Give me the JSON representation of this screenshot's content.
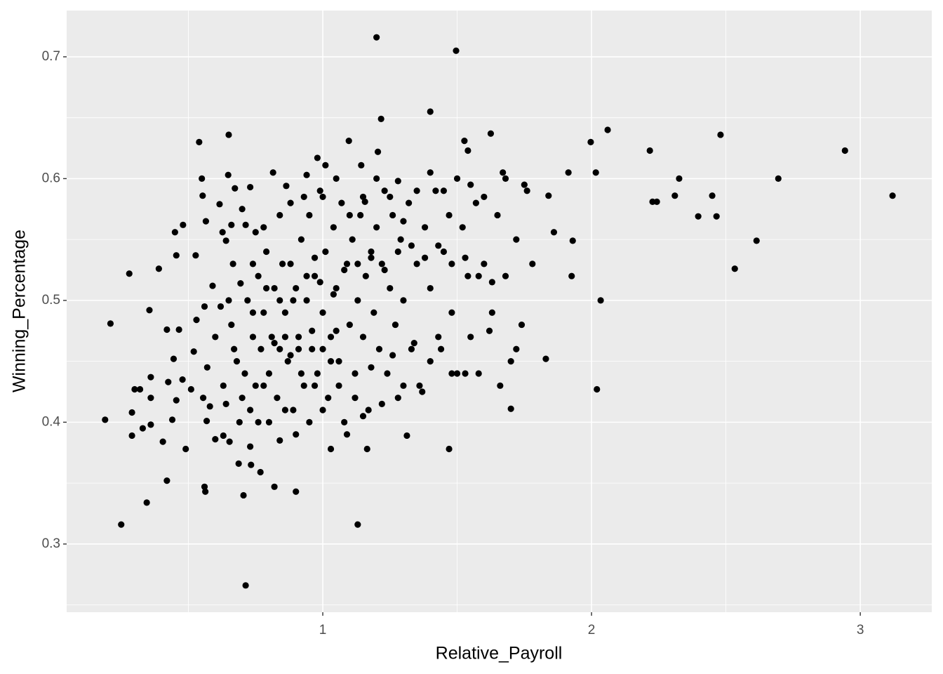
{
  "chart_data": {
    "type": "scatter",
    "x_label": "Relative_Payroll",
    "y_label": "Winning_Percentage",
    "xlim": [
      0.047,
      3.266
    ],
    "ylim": [
      0.244,
      0.738
    ],
    "xticks": [
      1,
      2,
      3
    ],
    "yticks": [
      0.3,
      0.4,
      0.5,
      0.6,
      0.7
    ],
    "grid": true,
    "color": "#000000",
    "x": [
      0.19,
      0.21,
      0.25,
      0.28,
      0.29,
      0.29,
      0.3,
      0.32,
      0.33,
      0.345,
      0.355,
      0.36,
      0.36,
      0.36,
      0.39,
      0.405,
      0.42,
      0.42,
      0.425,
      0.44,
      0.445,
      0.45,
      0.455,
      0.455,
      0.465,
      0.48,
      0.478,
      0.49,
      0.51,
      0.52,
      0.527,
      0.53,
      0.54,
      0.55,
      0.553,
      0.56,
      0.56,
      0.563,
      0.565,
      0.555,
      0.568,
      0.58,
      0.59,
      0.6,
      0.616,
      0.627,
      0.63,
      0.64,
      0.648,
      0.65,
      0.653,
      0.66,
      0.666,
      0.673,
      0.687,
      0.694,
      0.705,
      0.713,
      0.713,
      0.73,
      0.733,
      0.75,
      0.768,
      0.815,
      0.82,
      0.864,
      0.9,
      0.94,
      0.98,
      1.01,
      1.03,
      1.097,
      1.13,
      1.143,
      1.157,
      1.165,
      1.2,
      1.205,
      1.217,
      1.28,
      1.313,
      1.4,
      1.47,
      1.496,
      1.527,
      1.54,
      1.625,
      1.67,
      1.7,
      1.75,
      1.83,
      1.84,
      1.86,
      1.914,
      1.926,
      1.93,
      1.997,
      2.016,
      2.02,
      2.034,
      2.06,
      2.217,
      2.227,
      2.243,
      2.31,
      2.326,
      2.397,
      2.449,
      2.465,
      2.48,
      2.533,
      2.614,
      2.695,
      2.943,
      3.12,
      0.62,
      0.65,
      0.66,
      0.67,
      0.68,
      0.7,
      0.71,
      0.72,
      0.73,
      0.74,
      0.75,
      0.76,
      0.77,
      0.78,
      0.79,
      0.8,
      0.81,
      0.82,
      0.83,
      0.84,
      0.85,
      0.86,
      0.87,
      0.88,
      0.89,
      0.9,
      0.91,
      0.92,
      0.93,
      0.94,
      0.95,
      0.96,
      0.97,
      0.98,
      0.99,
      1.0,
      1.01,
      1.02,
      1.03,
      1.04,
      1.05,
      1.06,
      1.07,
      1.08,
      1.09,
      1.1,
      1.11,
      1.12,
      1.13,
      1.14,
      1.15,
      1.16,
      1.17,
      1.18,
      1.19,
      1.2,
      1.21,
      1.22,
      1.23,
      1.24,
      1.25,
      1.26,
      1.27,
      1.28,
      1.29,
      1.3,
      1.32,
      1.33,
      1.35,
      1.36,
      1.38,
      1.4,
      1.42,
      1.43,
      1.45,
      1.47,
      1.48,
      1.5,
      1.52,
      1.54,
      1.55,
      1.57,
      1.6,
      1.63,
      1.65,
      1.68,
      1.7,
      1.72,
      1.74,
      1.76,
      1.78,
      0.57,
      0.6,
      0.63,
      0.64,
      0.69,
      0.73,
      0.76,
      0.78,
      0.8,
      0.84,
      0.86,
      0.88,
      0.9,
      0.92,
      0.95,
      0.97,
      1.0,
      1.03,
      1.06,
      1.09,
      1.12,
      1.15,
      1.18,
      1.22,
      1.26,
      1.3,
      1.34,
      1.37,
      1.4,
      1.44,
      1.48,
      1.53,
      1.58,
      1.62,
      1.66,
      1.72,
      0.7,
      0.74,
      0.78,
      0.84,
      0.88,
      0.93,
      0.97,
      1.0,
      1.05,
      1.1,
      1.15,
      1.2,
      1.25,
      1.3,
      1.35,
      1.4,
      1.45,
      1.5,
      1.55,
      1.6,
      1.68,
      0.82,
      0.86,
      0.91,
      0.96,
      1.0,
      1.05,
      0.74,
      0.79,
      0.84,
      0.89,
      0.94,
      0.99,
      1.04,
      1.08,
      1.13,
      1.18,
      1.23,
      1.28,
      1.33,
      1.38,
      1.43,
      1.48,
      1.53,
      1.58,
      1.63
    ],
    "values": [
      0.402,
      0.481,
      0.316,
      0.522,
      0.408,
      0.389,
      0.427,
      0.427,
      0.395,
      0.334,
      0.492,
      0.42,
      0.437,
      0.398,
      0.526,
      0.384,
      0.352,
      0.476,
      0.433,
      0.402,
      0.452,
      0.556,
      0.537,
      0.418,
      0.476,
      0.562,
      0.435,
      0.378,
      0.427,
      0.458,
      0.537,
      0.484,
      0.63,
      0.6,
      0.586,
      0.495,
      0.347,
      0.343,
      0.565,
      0.42,
      0.401,
      0.413,
      0.512,
      0.386,
      0.579,
      0.556,
      0.389,
      0.549,
      0.603,
      0.636,
      0.384,
      0.562,
      0.53,
      0.592,
      0.366,
      0.514,
      0.34,
      0.266,
      0.562,
      0.593,
      0.365,
      0.556,
      0.359,
      0.605,
      0.347,
      0.594,
      0.343,
      0.603,
      0.617,
      0.611,
      0.378,
      0.631,
      0.316,
      0.611,
      0.581,
      0.378,
      0.716,
      0.622,
      0.649,
      0.598,
      0.389,
      0.655,
      0.378,
      0.705,
      0.631,
      0.623,
      0.637,
      0.605,
      0.411,
      0.595,
      0.452,
      0.586,
      0.556,
      0.605,
      0.52,
      0.549,
      0.63,
      0.605,
      0.427,
      0.5,
      0.64,
      0.623,
      0.581,
      0.581,
      0.586,
      0.6,
      0.569,
      0.586,
      0.569,
      0.636,
      0.526,
      0.549,
      0.6,
      0.623,
      0.586,
      0.495,
      0.5,
      0.48,
      0.46,
      0.45,
      0.42,
      0.44,
      0.5,
      0.41,
      0.47,
      0.43,
      0.52,
      0.46,
      0.49,
      0.54,
      0.44,
      0.47,
      0.51,
      0.42,
      0.46,
      0.53,
      0.49,
      0.45,
      0.58,
      0.41,
      0.51,
      0.47,
      0.55,
      0.43,
      0.5,
      0.57,
      0.46,
      0.52,
      0.44,
      0.59,
      0.49,
      0.54,
      0.42,
      0.47,
      0.56,
      0.51,
      0.45,
      0.58,
      0.4,
      0.53,
      0.48,
      0.55,
      0.44,
      0.5,
      0.57,
      0.47,
      0.52,
      0.41,
      0.54,
      0.49,
      0.56,
      0.46,
      0.53,
      0.59,
      0.44,
      0.51,
      0.57,
      0.48,
      0.42,
      0.55,
      0.5,
      0.58,
      0.46,
      0.53,
      0.43,
      0.56,
      0.51,
      0.59,
      0.47,
      0.54,
      0.57,
      0.49,
      0.44,
      0.56,
      0.52,
      0.47,
      0.58,
      0.53,
      0.49,
      0.57,
      0.52,
      0.45,
      0.55,
      0.48,
      0.59,
      0.53,
      0.445,
      0.47,
      0.43,
      0.415,
      0.4,
      0.38,
      0.4,
      0.43,
      0.4,
      0.385,
      0.41,
      0.455,
      0.39,
      0.44,
      0.4,
      0.43,
      0.41,
      0.45,
      0.43,
      0.39,
      0.42,
      0.405,
      0.445,
      0.415,
      0.455,
      0.43,
      0.465,
      0.425,
      0.45,
      0.46,
      0.44,
      0.44,
      0.44,
      0.475,
      0.43,
      0.46,
      0.575,
      0.53,
      0.56,
      0.57,
      0.53,
      0.585,
      0.535,
      0.585,
      0.6,
      0.57,
      0.585,
      0.6,
      0.585,
      0.565,
      0.59,
      0.605,
      0.59,
      0.6,
      0.595,
      0.585,
      0.6,
      0.465,
      0.47,
      0.46,
      0.475,
      0.46,
      0.475,
      0.49,
      0.51,
      0.5,
      0.5,
      0.52,
      0.515,
      0.505,
      0.525,
      0.53,
      0.535,
      0.525,
      0.54,
      0.545,
      0.535,
      0.545,
      0.53,
      0.535,
      0.52,
      0.515
    ]
  }
}
